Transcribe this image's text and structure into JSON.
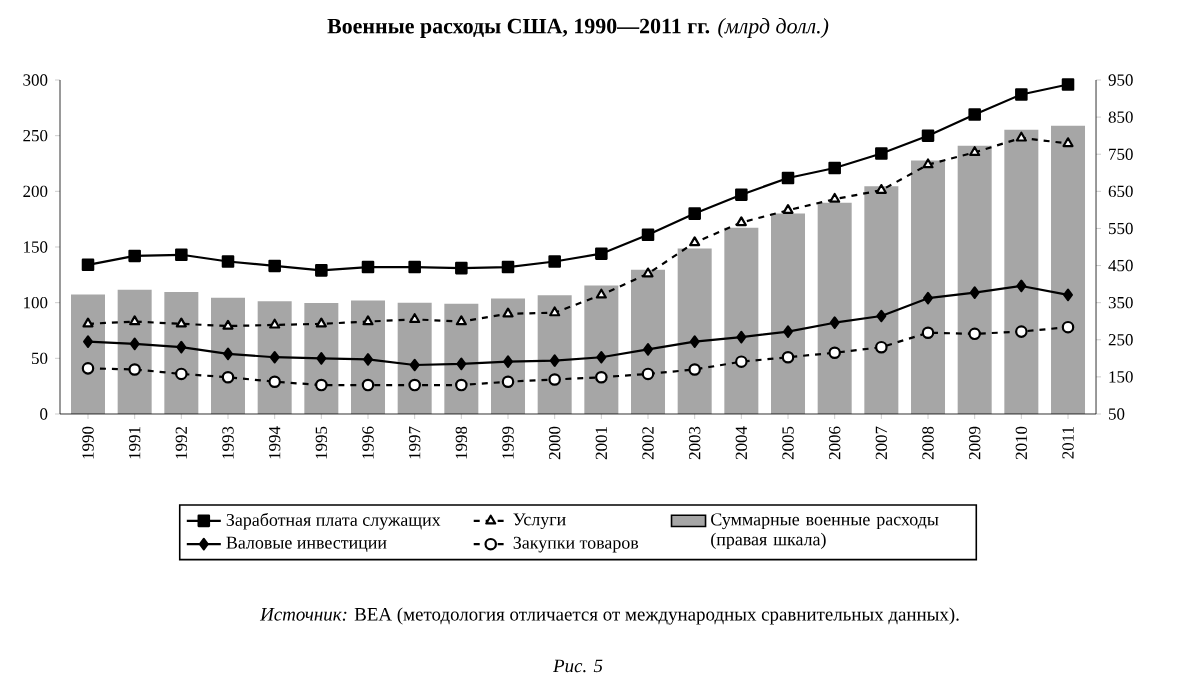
{
  "chart_data": {
    "type": "line",
    "title": "**Военные расходы США, 1990—2011 гг.** *(млрд долл.)*",
    "categories": [
      "1990",
      "1991",
      "1992",
      "1993",
      "1994",
      "1995",
      "1996",
      "1997",
      "1998",
      "1999",
      "2000",
      "2001",
      "2002",
      "2003",
      "2004",
      "2005",
      "2006",
      "2007",
      "2008",
      "2009",
      "2010",
      "2011"
    ],
    "series": [
      {
        "name": "Заработная плата служащих",
        "color": "#000000",
        "marker": "square",
        "line_style": "solid",
        "values": [
          134,
          142,
          143,
          137,
          133,
          129,
          132,
          132,
          131,
          132,
          137,
          144,
          161,
          180,
          197,
          212,
          221,
          234,
          250,
          269,
          287,
          296
        ]
      },
      {
        "name": "Услуги",
        "color": "#000000",
        "marker": "triangle",
        "line_style": "dashed",
        "values": [
          81,
          83,
          81,
          79,
          80,
          81,
          83,
          85,
          83,
          90,
          91,
          107,
          126,
          154,
          172,
          183,
          193,
          201,
          224,
          235,
          248,
          243
        ]
      },
      {
        "name": "Суммарные военные расходы (правая шкала)",
        "type": "bar",
        "axis": "y2",
        "color": "#a6a6a6",
        "values": [
          372,
          385,
          379,
          363,
          354,
          349,
          356,
          350,
          347,
          361,
          370,
          396,
          439,
          496,
          552,
          590,
          619,
          664,
          733,
          773,
          816,
          827
        ]
      },
      {
        "name": "Валовые инвестиции",
        "color": "#000000",
        "marker": "diamond",
        "line_style": "solid",
        "values": [
          65,
          63,
          60,
          54,
          51,
          50,
          49,
          44,
          45,
          47,
          48,
          51,
          58,
          65,
          69,
          74,
          82,
          88,
          104,
          109,
          115,
          107
        ]
      },
      {
        "name": "Закупки товаров",
        "color": "#000000",
        "marker": "circle",
        "line_style": "dashed",
        "values": [
          41,
          40,
          36,
          33,
          29,
          26,
          26,
          26,
          26,
          29,
          31,
          33,
          36,
          40,
          47,
          51,
          55,
          60,
          73,
          72,
          74,
          78
        ]
      }
    ],
    "ylim": [
      0,
      300
    ],
    "yticks": [
      0,
      50,
      100,
      150,
      200,
      250,
      300
    ],
    "y2lim": [
      50,
      950
    ],
    "y2ticks": [
      50,
      150,
      250,
      350,
      450,
      550,
      650,
      750,
      850,
      950
    ],
    "legend": "bottom",
    "annotations": [
      "*Источник:* BEA (методология отличается от международных сравнительных данных).",
      "Рис. 5"
    ]
  }
}
